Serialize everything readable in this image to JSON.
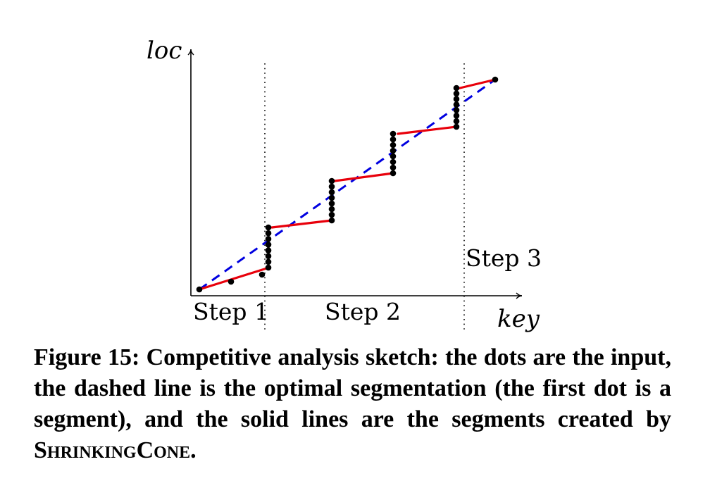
{
  "axes": {
    "y_label": "loc",
    "x_label": "key"
  },
  "steps": [
    {
      "label": "Step 1"
    },
    {
      "label": "Step 2"
    },
    {
      "label": "Step 3"
    }
  ],
  "caption": {
    "prefix": "Figure 15: Competitive analysis sketch: the dots are the input, the dashed line is the optimal segmentation (the first dot is a segment), and the solid lines are the segments created by ",
    "algorithm": "ShrinkingCone",
    "suffix": "."
  },
  "colors": {
    "segment": "#e8000b",
    "optimal": "#0000e0",
    "dots": "#000000",
    "axes": "#000000"
  }
}
